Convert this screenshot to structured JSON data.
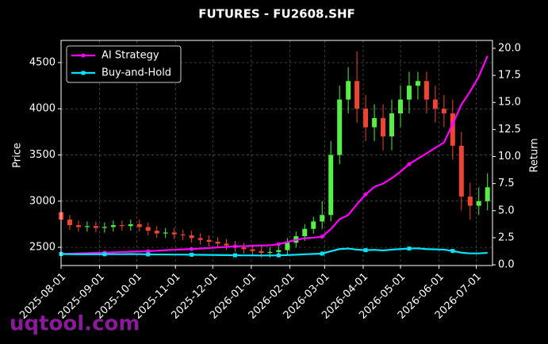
{
  "chart_data": {
    "type": "candlestick",
    "title": "FUTURES - FU2608.SHF",
    "ylabel": "Price",
    "y2label": "Return",
    "watermark": "uqtool.com",
    "up_color": "#55ee44",
    "down_color": "#ee4433",
    "grid": true,
    "legend": "upper left",
    "x": [
      "2025-08-01",
      "2025-08-08",
      "2025-08-15",
      "2025-08-22",
      "2025-08-29",
      "2025-09-05",
      "2025-09-12",
      "2025-09-19",
      "2025-09-26",
      "2025-10-03",
      "2025-10-10",
      "2025-10-17",
      "2025-10-24",
      "2025-10-31",
      "2025-11-07",
      "2025-11-14",
      "2025-11-21",
      "2025-11-28",
      "2025-12-05",
      "2025-12-12",
      "2025-12-19",
      "2025-12-26",
      "2026-01-02",
      "2026-01-09",
      "2026-01-16",
      "2026-01-23",
      "2026-01-30",
      "2026-02-06",
      "2026-02-13",
      "2026-02-20",
      "2026-02-27",
      "2026-03-06",
      "2026-03-13",
      "2026-03-20",
      "2026-03-27",
      "2026-04-03",
      "2026-04-10",
      "2026-04-17",
      "2026-04-24",
      "2026-05-01",
      "2026-05-08",
      "2026-05-15",
      "2026-05-22",
      "2026-05-29",
      "2026-06-05",
      "2026-06-12",
      "2026-06-19",
      "2026-06-26",
      "2026-07-03",
      "2026-07-10"
    ],
    "open": [
      2880,
      2800,
      2740,
      2720,
      2730,
      2710,
      2720,
      2740,
      2730,
      2750,
      2720,
      2680,
      2650,
      2660,
      2640,
      2630,
      2600,
      2580,
      2560,
      2540,
      2520,
      2500,
      2480,
      2460,
      2440,
      2450,
      2470,
      2550,
      2620,
      2700,
      2780,
      2850,
      3500,
      4100,
      4300,
      4000,
      3800,
      3900,
      3700,
      3950,
      4100,
      4250,
      4300,
      4100,
      4000,
      3950,
      3600,
      3050,
      2950,
      3000
    ],
    "high": [
      2930,
      2850,
      2790,
      2780,
      2780,
      2770,
      2790,
      2790,
      2800,
      2800,
      2770,
      2730,
      2710,
      2710,
      2690,
      2680,
      2650,
      2630,
      2610,
      2590,
      2570,
      2550,
      2530,
      2510,
      2500,
      2520,
      2600,
      2670,
      2750,
      2830,
      3000,
      3650,
      4250,
      4450,
      4620,
      4150,
      4050,
      4050,
      4100,
      4250,
      4400,
      4400,
      4400,
      4250,
      4150,
      4100,
      3750,
      3200,
      3150,
      3300
    ],
    "low": [
      2750,
      2690,
      2670,
      2670,
      2660,
      2660,
      2670,
      2680,
      2680,
      2670,
      2630,
      2600,
      2600,
      2590,
      2580,
      2550,
      2530,
      2510,
      2490,
      2470,
      2450,
      2430,
      2410,
      2390,
      2390,
      2400,
      2420,
      2500,
      2570,
      2650,
      2700,
      2780,
      3400,
      3950,
      3850,
      3650,
      3650,
      3550,
      3550,
      3800,
      3950,
      4100,
      3950,
      3850,
      3800,
      3450,
      2900,
      2800,
      2850,
      2900
    ],
    "close": [
      2800,
      2740,
      2720,
      2730,
      2710,
      2720,
      2740,
      2730,
      2750,
      2720,
      2680,
      2650,
      2660,
      2640,
      2630,
      2600,
      2580,
      2560,
      2540,
      2520,
      2500,
      2480,
      2460,
      2440,
      2450,
      2470,
      2550,
      2620,
      2700,
      2780,
      2850,
      3500,
      4100,
      4300,
      4000,
      3800,
      3900,
      3700,
      3950,
      4100,
      4250,
      4300,
      4100,
      4000,
      3950,
      3600,
      3050,
      2950,
      3000,
      3150
    ],
    "series": [
      {
        "name": "AI Strategy",
        "color": "#ff00ff",
        "marker": "circle",
        "axis": "y2",
        "values": [
          1.0,
          1.02,
          1.05,
          1.07,
          1.1,
          1.12,
          1.15,
          1.18,
          1.2,
          1.22,
          1.25,
          1.3,
          1.35,
          1.38,
          1.42,
          1.45,
          1.5,
          1.55,
          1.6,
          1.65,
          1.7,
          1.72,
          1.75,
          1.78,
          1.8,
          1.9,
          2.1,
          2.3,
          2.45,
          2.5,
          2.6,
          3.3,
          4.2,
          4.6,
          5.6,
          6.5,
          7.2,
          7.5,
          8.0,
          8.6,
          9.3,
          9.8,
          10.3,
          10.8,
          11.3,
          13.0,
          14.8,
          16.0,
          17.4,
          19.3
        ]
      },
      {
        "name": "Buy-and-Hold",
        "color": "#00e5ff",
        "marker": "square",
        "axis": "y2",
        "values": [
          1.0,
          0.98,
          0.97,
          0.98,
          0.97,
          0.97,
          0.98,
          0.98,
          0.99,
          0.98,
          0.96,
          0.95,
          0.95,
          0.94,
          0.94,
          0.93,
          0.92,
          0.91,
          0.9,
          0.89,
          0.88,
          0.87,
          0.87,
          0.86,
          0.86,
          0.87,
          0.9,
          0.93,
          0.97,
          1.0,
          1.03,
          1.25,
          1.45,
          1.5,
          1.4,
          1.35,
          1.38,
          1.32,
          1.4,
          1.45,
          1.5,
          1.52,
          1.45,
          1.42,
          1.4,
          1.28,
          1.12,
          1.05,
          1.05,
          1.1
        ]
      }
    ],
    "xlim": [
      "2025-08-01",
      "2026-07-14"
    ],
    "xticks": [
      "2025-08-01",
      "2025-09-01",
      "2025-10-01",
      "2025-11-01",
      "2025-12-01",
      "2026-01-01",
      "2026-02-01",
      "2026-03-01",
      "2026-04-01",
      "2026-05-01",
      "2026-06-01",
      "2026-07-01"
    ],
    "ylim": [
      2303,
      4740
    ],
    "yticks": [
      2500,
      3000,
      3500,
      4000,
      4500
    ],
    "y2lim": [
      -0.07,
      20.73
    ],
    "y2ticks": [
      {
        "value": 0,
        "label": "0.0"
      },
      2.5,
      {
        "value": 5,
        "label": "5.0"
      },
      7.5,
      {
        "value": 10,
        "label": "10.0"
      },
      12.5,
      {
        "value": 15,
        "label": "15.0"
      },
      17.5,
      {
        "value": 20,
        "label": "20.0"
      }
    ]
  }
}
